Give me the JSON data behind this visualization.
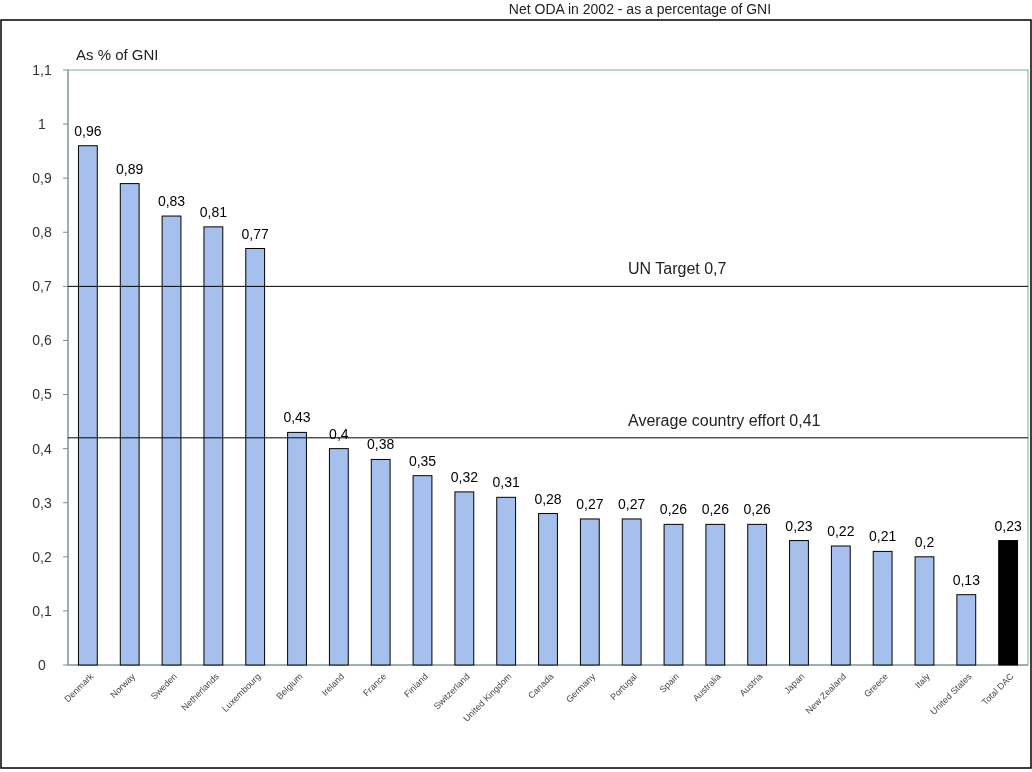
{
  "chart_data": {
    "type": "bar",
    "title": "Net ODA in 2002 - as a percentage of GNI",
    "ylabel": "As % of GNI",
    "categories": [
      "Denmark",
      "Norway",
      "Sweden",
      "Netherlands",
      "Luxembourg",
      "Belgium",
      "Ireland",
      "France",
      "Finland",
      "Switzerland",
      "United Kingdom",
      "Canada",
      "Germany",
      "Portugal",
      "Spain",
      "Australia",
      "Austria",
      "Japan",
      "New Zealand",
      "Greece",
      "Italy",
      "United States",
      "Total DAC"
    ],
    "values": [
      0.96,
      0.89,
      0.83,
      0.81,
      0.77,
      0.43,
      0.4,
      0.38,
      0.35,
      0.32,
      0.31,
      0.28,
      0.27,
      0.27,
      0.26,
      0.26,
      0.26,
      0.23,
      0.22,
      0.21,
      0.2,
      0.13,
      0.23
    ],
    "colors": [
      "#a6c0ee",
      "#a6c0ee",
      "#a6c0ee",
      "#a6c0ee",
      "#a6c0ee",
      "#a6c0ee",
      "#a6c0ee",
      "#a6c0ee",
      "#a6c0ee",
      "#a6c0ee",
      "#a6c0ee",
      "#a6c0ee",
      "#a6c0ee",
      "#a6c0ee",
      "#a6c0ee",
      "#a6c0ee",
      "#a6c0ee",
      "#a6c0ee",
      "#a6c0ee",
      "#a6c0ee",
      "#a6c0ee",
      "#a6c0ee",
      "#000000"
    ],
    "value_labels": [
      "0,96",
      "0,89",
      "0,83",
      "0,81",
      "0,77",
      "0,43",
      "0,4",
      "0,38",
      "0,35",
      "0,32",
      "0,31",
      "0,28",
      "0,27",
      "0,27",
      "0,26",
      "0,26",
      "0,26",
      "0,23",
      "0,22",
      "0,21",
      "0,2",
      "0,13",
      "0,23"
    ],
    "ylim": [
      0,
      1.1
    ],
    "yticks": [
      0,
      {
        "value": 0.1,
        "label": "0,1"
      },
      {
        "value": 0.2,
        "label": "0,2"
      },
      {
        "value": 0.3,
        "label": "0,3"
      },
      {
        "value": 0.4,
        "label": "0,4"
      },
      {
        "value": 0.5,
        "label": "0,5"
      },
      {
        "value": 0.6,
        "label": "0,6"
      },
      {
        "value": 0.7,
        "label": "0,7"
      },
      {
        "value": 0.8,
        "label": "0,8"
      },
      {
        "value": 0.9,
        "label": "0,9"
      },
      1,
      {
        "value": 1.1,
        "label": "1,1"
      }
    ],
    "ref_lines": [
      {
        "axis": "y",
        "value": 0.7,
        "label": "UN Target 0,7",
        "color": "#000000"
      },
      {
        "axis": "y",
        "value": 0.42,
        "label": "Average country effort 0,41",
        "color": "#000000"
      }
    ],
    "grid": false
  }
}
